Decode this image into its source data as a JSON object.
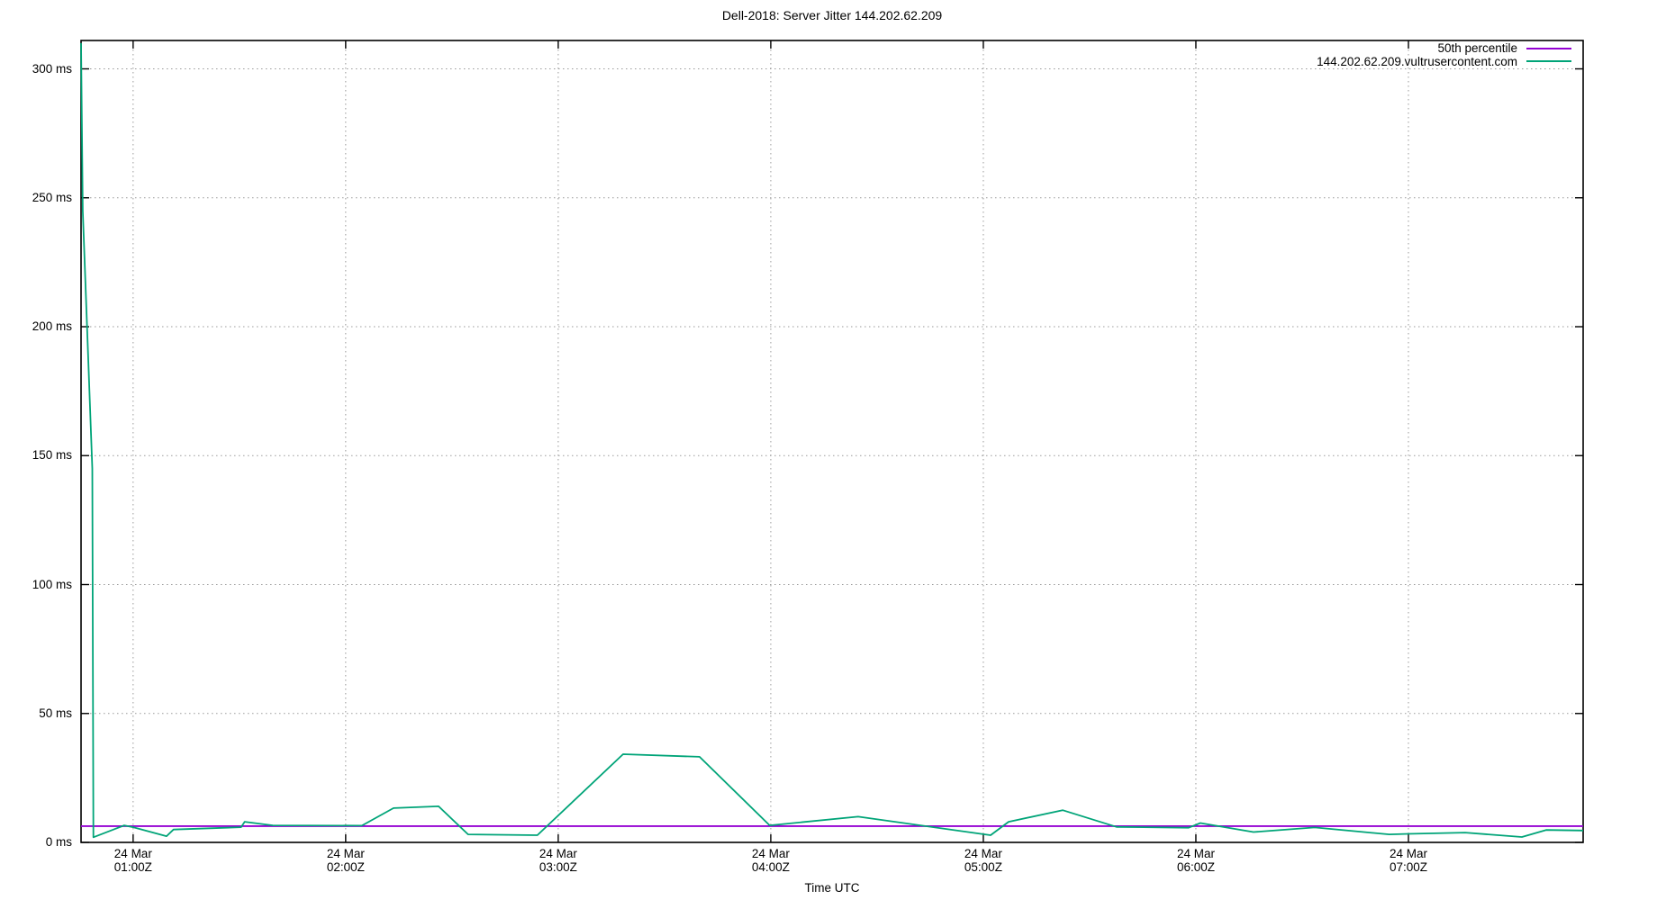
{
  "title": "Dell-2018: Server Jitter 144.202.62.209",
  "chart_data": {
    "type": "line",
    "title": "Dell-2018: Server Jitter 144.202.62.209",
    "xlabel": "Time UTC",
    "ylabel": "",
    "grid": true,
    "legend_position": "top-right-inside",
    "xlim_hours": [
      0.755,
      7.822
    ],
    "ylim": [
      0,
      311
    ],
    "yticks": [
      {
        "label": "0 ms",
        "value": 0
      },
      {
        "label": "50 ms",
        "value": 50
      },
      {
        "label": "100 ms",
        "value": 100
      },
      {
        "label": "150 ms",
        "value": 150
      },
      {
        "label": "200 ms",
        "value": 200
      },
      {
        "label": "250 ms",
        "value": 250
      },
      {
        "label": "300 ms",
        "value": 300
      }
    ],
    "xticks": [
      {
        "line1": "24 Mar",
        "line2": "01:00Z",
        "hour": 1
      },
      {
        "line1": "24 Mar",
        "line2": "02:00Z",
        "hour": 2
      },
      {
        "line1": "24 Mar",
        "line2": "03:00Z",
        "hour": 3
      },
      {
        "line1": "24 Mar",
        "line2": "04:00Z",
        "hour": 4
      },
      {
        "line1": "24 Mar",
        "line2": "05:00Z",
        "hour": 5
      },
      {
        "line1": "24 Mar",
        "line2": "06:00Z",
        "hour": 6
      },
      {
        "line1": "24 Mar",
        "line2": "07:00Z",
        "hour": 7
      }
    ],
    "series": [
      {
        "name": "50th percentile",
        "type": "hline",
        "color": "#9400d3",
        "value_ms": 6.3
      },
      {
        "name": "144.202.62.209.vultrusercontent.com",
        "type": "line",
        "color": "#00a478",
        "points_hour_ms": [
          [
            0.755,
            310
          ],
          [
            0.763,
            245
          ],
          [
            0.808,
            145
          ],
          [
            0.813,
            2.0
          ],
          [
            0.958,
            6.6
          ],
          [
            1.0,
            5.9
          ],
          [
            1.157,
            2.4
          ],
          [
            1.19,
            5.0
          ],
          [
            1.508,
            5.9
          ],
          [
            1.525,
            8.0
          ],
          [
            1.657,
            6.6
          ],
          [
            2.076,
            6.5
          ],
          [
            2.225,
            13.3
          ],
          [
            2.437,
            14.0
          ],
          [
            2.576,
            3.1
          ],
          [
            2.902,
            2.8
          ],
          [
            3.305,
            34.2
          ],
          [
            3.665,
            33.2
          ],
          [
            3.995,
            6.6
          ],
          [
            4.411,
            10.0
          ],
          [
            5.034,
            2.8
          ],
          [
            5.119,
            8.0
          ],
          [
            5.373,
            12.5
          ],
          [
            5.627,
            6.0
          ],
          [
            5.966,
            5.7
          ],
          [
            6.021,
            7.5
          ],
          [
            6.271,
            4.0
          ],
          [
            6.559,
            5.8
          ],
          [
            6.74,
            4.4
          ],
          [
            6.91,
            3.1
          ],
          [
            7.0,
            3.3
          ],
          [
            7.267,
            3.8
          ],
          [
            7.534,
            2.1
          ],
          [
            7.648,
            4.8
          ],
          [
            7.822,
            4.6
          ]
        ]
      }
    ]
  },
  "colors": {
    "background": "#ffffff",
    "border": "#000000",
    "grid": "#9a9a9a",
    "text": "#000000",
    "percentile_line": "#9400d3",
    "jitter_line": "#00a478"
  }
}
